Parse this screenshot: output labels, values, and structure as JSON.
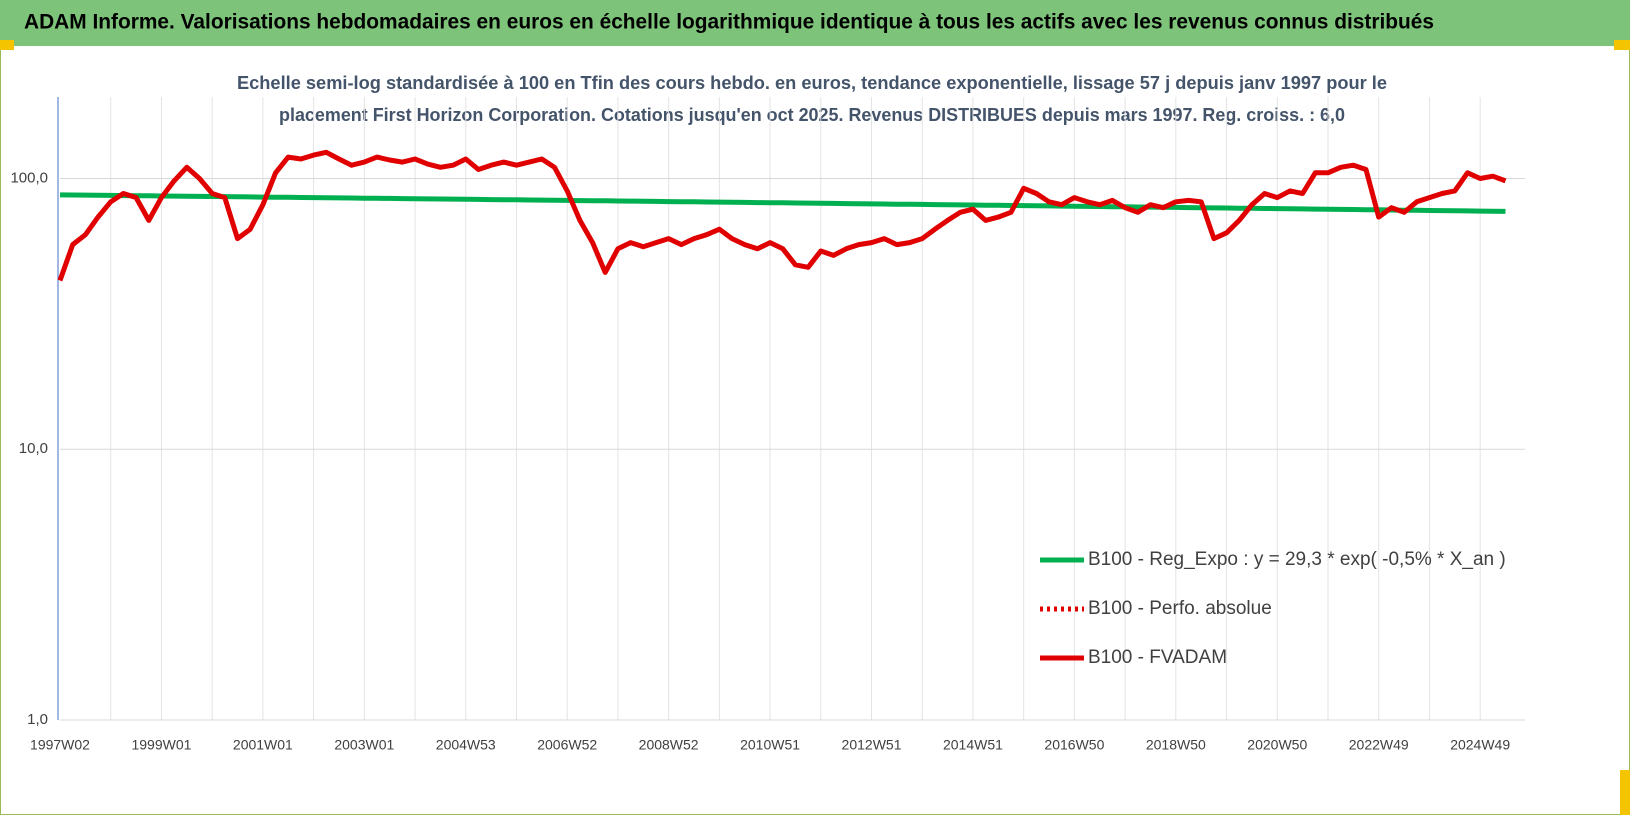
{
  "chart_data": {
    "type": "line",
    "title": "ADAM Informe. Valorisations hebdomadaires en euros en échelle logarithmique identique à tous les actifs avec les revenus connus distribués",
    "subtitle": [
      "Echelle semi-log standardisée à 100 en Tfin des cours hebdo. en euros, tendance exponentielle, lissage 57 j depuis janv 1997 pour le",
      "placement First Horizon Corporation. Cotations jusqu'en oct 2025.  Revenus DISTRIBUES depuis mars 1997. Reg. croiss. : 6,0"
    ],
    "log_scale": true,
    "grid": true,
    "legend": "lower right",
    "ylim": [
      1,
      200
    ],
    "yticks": [
      {
        "value": 1,
        "label": "1,0"
      },
      {
        "value": 10,
        "label": "10,0"
      },
      {
        "value": 100,
        "label": "100,0"
      }
    ],
    "categories": [
      "1997W02",
      null,
      null,
      null,
      null,
      null,
      null,
      null,
      "1999W01",
      null,
      null,
      null,
      null,
      null,
      null,
      null,
      "2001W01",
      null,
      null,
      null,
      null,
      null,
      null,
      null,
      "2003W01",
      null,
      null,
      null,
      null,
      null,
      null,
      null,
      "2004W53",
      null,
      null,
      null,
      null,
      null,
      null,
      null,
      "2006W52",
      null,
      null,
      null,
      null,
      null,
      null,
      null,
      "2008W52",
      null,
      null,
      null,
      null,
      null,
      null,
      null,
      "2010W51",
      null,
      null,
      null,
      null,
      null,
      null,
      null,
      "2012W51",
      null,
      null,
      null,
      null,
      null,
      null,
      null,
      "2014W51",
      null,
      null,
      null,
      null,
      null,
      null,
      null,
      "2016W50",
      null,
      null,
      null,
      null,
      null,
      null,
      null,
      "2018W50",
      null,
      null,
      null,
      null,
      null,
      null,
      null,
      "2020W50",
      null,
      null,
      null,
      null,
      null,
      null,
      null,
      "2022W49",
      null,
      null,
      null,
      null,
      null,
      null,
      null,
      "2024W49",
      null,
      null
    ],
    "series": [
      {
        "name": "B100 - Reg_Expo : y = 29,3 * exp( -0,5% *  X_an )",
        "color": "#00b050",
        "style": "solid",
        "values": [
          87.0,
          86.9,
          86.8,
          86.7,
          86.6,
          86.5,
          86.4,
          86.3,
          86.2,
          86.1,
          86.0,
          85.9,
          85.8,
          85.7,
          85.6,
          85.5,
          85.4,
          85.3,
          85.2,
          85.1,
          85.0,
          84.9,
          84.8,
          84.7,
          84.6,
          84.5,
          84.4,
          84.3,
          84.2,
          84.1,
          84.0,
          83.9,
          83.8,
          83.7,
          83.6,
          83.5,
          83.4,
          83.3,
          83.2,
          83.1,
          83.0,
          82.9,
          82.8,
          82.7,
          82.6,
          82.5,
          82.4,
          82.3,
          82.2,
          82.1,
          82.0,
          81.9,
          81.8,
          81.7,
          81.6,
          81.5,
          81.4,
          81.3,
          81.2,
          81.1,
          81.0,
          80.9,
          80.8,
          80.7,
          80.6,
          80.5,
          80.4,
          80.3,
          80.2,
          80.1,
          80.0,
          79.9,
          79.8,
          79.7,
          79.6,
          79.5,
          79.4,
          79.3,
          79.2,
          79.1,
          79.0,
          78.9,
          78.8,
          78.7,
          78.6,
          78.5,
          78.4,
          78.3,
          78.2,
          78.1,
          78.0,
          77.9,
          77.8,
          77.7,
          77.6,
          77.5,
          77.4,
          77.3,
          77.2,
          77.1,
          77.0,
          76.9,
          76.8,
          76.7,
          76.6,
          76.5,
          76.4,
          76.3,
          76.2,
          76.1,
          76.0,
          75.9,
          75.8,
          75.7,
          75.6
        ]
      },
      {
        "name": "B100 - Perfo. absolue",
        "color": "#e00000",
        "style": "dotted"
      },
      {
        "name": "B100 - FVADAM",
        "color": "#e00000",
        "style": "solid",
        "values": [
          42,
          57,
          62,
          72,
          82,
          88,
          85,
          70,
          85,
          98,
          110,
          100,
          88,
          85,
          60,
          65,
          80,
          105,
          120,
          118,
          122,
          125,
          118,
          112,
          115,
          120,
          117,
          115,
          118,
          113,
          110,
          112,
          118,
          108,
          112,
          115,
          112,
          115,
          118,
          110,
          90,
          70,
          58,
          45,
          55,
          58,
          56,
          58,
          60,
          57,
          60,
          62,
          65,
          60,
          57,
          55,
          58,
          55,
          48,
          47,
          54,
          52,
          55,
          57,
          58,
          60,
          57,
          58,
          60,
          65,
          70,
          75,
          77,
          70,
          72,
          75,
          92,
          88,
          82,
          80,
          85,
          82,
          80,
          83,
          78,
          75,
          80,
          78,
          82,
          83,
          82,
          60,
          63,
          70,
          80,
          88,
          85,
          90,
          88,
          105,
          105,
          110,
          112,
          108,
          72,
          78,
          75,
          82,
          85,
          88,
          90,
          105,
          100,
          102,
          98
        ]
      }
    ]
  }
}
